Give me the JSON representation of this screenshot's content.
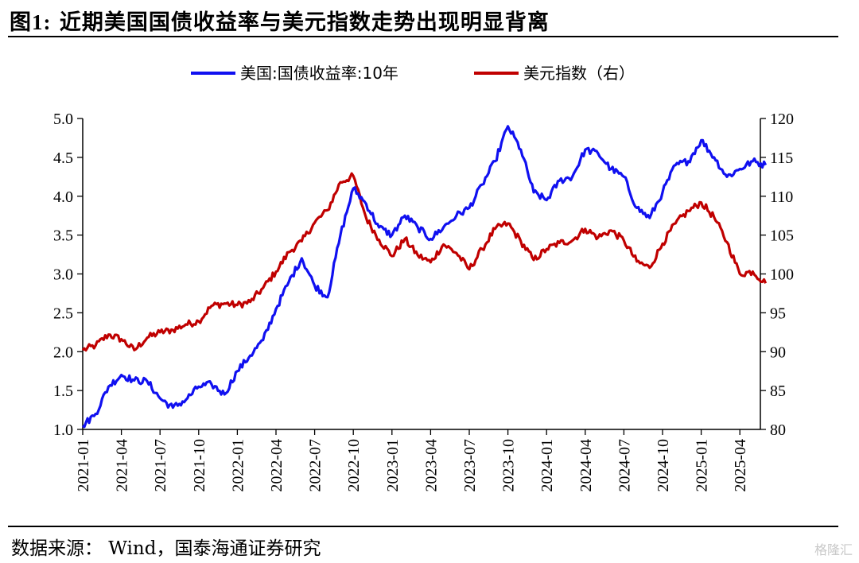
{
  "title_prefix": "图1:",
  "title_text": "近期美国国债收益率与美元指数走势出现明显背离",
  "source": "数据来源： Wind，国泰海通证券研究",
  "watermark": "格隆汇",
  "colors": {
    "us10y": "#1010f0",
    "dxy": "#c00000"
  },
  "chart_data": {
    "type": "line",
    "title": "近期美国国债收益率与美元指数走势出现明显背离",
    "legend_position": "top-center",
    "grid": false,
    "x_ticks": [
      "2021-01",
      "2021-04",
      "2021-07",
      "2021-10",
      "2022-01",
      "2022-04",
      "2022-07",
      "2022-10",
      "2023-01",
      "2023-04",
      "2023-07",
      "2023-10",
      "2024-01",
      "2024-04",
      "2024-07",
      "2024-10",
      "2025-01",
      "2025-04"
    ],
    "x_range": [
      "2021-01",
      "2025-06"
    ],
    "y_left": {
      "range": [
        1.0,
        5.0
      ],
      "ticks": [
        "1.0",
        "1.5",
        "2.0",
        "2.5",
        "3.0",
        "3.5",
        "4.0",
        "4.5",
        "5.0"
      ]
    },
    "y_right": {
      "range": [
        80,
        120
      ],
      "ticks": [
        "80",
        "85",
        "90",
        "95",
        "100",
        "105",
        "110",
        "115",
        "120"
      ]
    },
    "series": [
      {
        "name": "美国:国债收益率:10年",
        "axis": "left",
        "color": "#1010f0",
        "points": [
          [
            "2021-01",
            1.05
          ],
          [
            "2021-02",
            1.2
          ],
          [
            "2021-03",
            1.55
          ],
          [
            "2021-04",
            1.7
          ],
          [
            "2021-05",
            1.63
          ],
          [
            "2021-06",
            1.62
          ],
          [
            "2021-07",
            1.4
          ],
          [
            "2021-08",
            1.28
          ],
          [
            "2021-09",
            1.38
          ],
          [
            "2021-10",
            1.55
          ],
          [
            "2021-11",
            1.58
          ],
          [
            "2021-12",
            1.45
          ],
          [
            "2022-01",
            1.75
          ],
          [
            "2022-02",
            1.95
          ],
          [
            "2022-03",
            2.15
          ],
          [
            "2022-04",
            2.55
          ],
          [
            "2022-05",
            2.9
          ],
          [
            "2022-06",
            3.2
          ],
          [
            "2022-07",
            2.85
          ],
          [
            "2022-08",
            2.7
          ],
          [
            "2022-09",
            3.5
          ],
          [
            "2022-10",
            4.1
          ],
          [
            "2022-11",
            3.9
          ],
          [
            "2022-12",
            3.6
          ],
          [
            "2023-01",
            3.5
          ],
          [
            "2023-02",
            3.75
          ],
          [
            "2023-03",
            3.6
          ],
          [
            "2023-04",
            3.45
          ],
          [
            "2023-05",
            3.6
          ],
          [
            "2023-06",
            3.75
          ],
          [
            "2023-07",
            3.85
          ],
          [
            "2023-08",
            4.15
          ],
          [
            "2023-09",
            4.45
          ],
          [
            "2023-10",
            4.9
          ],
          [
            "2023-11",
            4.6
          ],
          [
            "2023-12",
            4.05
          ],
          [
            "2024-01",
            3.95
          ],
          [
            "2024-02",
            4.2
          ],
          [
            "2024-03",
            4.25
          ],
          [
            "2024-04",
            4.6
          ],
          [
            "2024-05",
            4.55
          ],
          [
            "2024-06",
            4.35
          ],
          [
            "2024-07",
            4.25
          ],
          [
            "2024-08",
            3.85
          ],
          [
            "2024-09",
            3.72
          ],
          [
            "2024-10",
            4.05
          ],
          [
            "2024-11",
            4.4
          ],
          [
            "2024-12",
            4.45
          ],
          [
            "2025-01",
            4.72
          ],
          [
            "2025-02",
            4.5
          ],
          [
            "2025-03",
            4.25
          ],
          [
            "2025-04",
            4.35
          ],
          [
            "2025-05",
            4.45
          ],
          [
            "2025-06",
            4.4
          ]
        ]
      },
      {
        "name": "美元指数（右）",
        "axis": "right",
        "color": "#c00000",
        "points": [
          [
            "2021-01",
            90.2
          ],
          [
            "2021-02",
            90.8
          ],
          [
            "2021-03",
            92.2
          ],
          [
            "2021-04",
            91.6
          ],
          [
            "2021-05",
            90.2
          ],
          [
            "2021-06",
            91.8
          ],
          [
            "2021-07",
            92.5
          ],
          [
            "2021-08",
            92.8
          ],
          [
            "2021-09",
            93.5
          ],
          [
            "2021-10",
            93.9
          ],
          [
            "2021-11",
            95.9
          ],
          [
            "2021-12",
            96.2
          ],
          [
            "2022-01",
            96.0
          ],
          [
            "2022-02",
            96.4
          ],
          [
            "2022-03",
            98.2
          ],
          [
            "2022-04",
            100.3
          ],
          [
            "2022-05",
            102.8
          ],
          [
            "2022-06",
            104.2
          ],
          [
            "2022-07",
            106.6
          ],
          [
            "2022-08",
            108.2
          ],
          [
            "2022-09",
            111.8
          ],
          [
            "2022-10",
            112.6
          ],
          [
            "2022-11",
            107.2
          ],
          [
            "2022-12",
            104.4
          ],
          [
            "2023-01",
            102.3
          ],
          [
            "2023-02",
            104.5
          ],
          [
            "2023-03",
            102.4
          ],
          [
            "2023-04",
            101.5
          ],
          [
            "2023-05",
            103.8
          ],
          [
            "2023-06",
            102.7
          ],
          [
            "2023-07",
            100.6
          ],
          [
            "2023-08",
            103.2
          ],
          [
            "2023-09",
            105.8
          ],
          [
            "2023-10",
            106.5
          ],
          [
            "2023-11",
            104.2
          ],
          [
            "2023-12",
            101.8
          ],
          [
            "2024-01",
            103.2
          ],
          [
            "2024-02",
            104.0
          ],
          [
            "2024-03",
            104.3
          ],
          [
            "2024-04",
            105.8
          ],
          [
            "2024-05",
            104.7
          ],
          [
            "2024-06",
            105.6
          ],
          [
            "2024-07",
            104.3
          ],
          [
            "2024-08",
            101.6
          ],
          [
            "2024-09",
            100.8
          ],
          [
            "2024-10",
            103.9
          ],
          [
            "2024-11",
            106.5
          ],
          [
            "2024-12",
            108.1
          ],
          [
            "2025-01",
            109.2
          ],
          [
            "2025-02",
            107.3
          ],
          [
            "2025-03",
            104.1
          ],
          [
            "2025-04",
            100.0
          ],
          [
            "2025-05",
            100.3
          ],
          [
            "2025-06",
            98.8
          ]
        ]
      }
    ]
  }
}
